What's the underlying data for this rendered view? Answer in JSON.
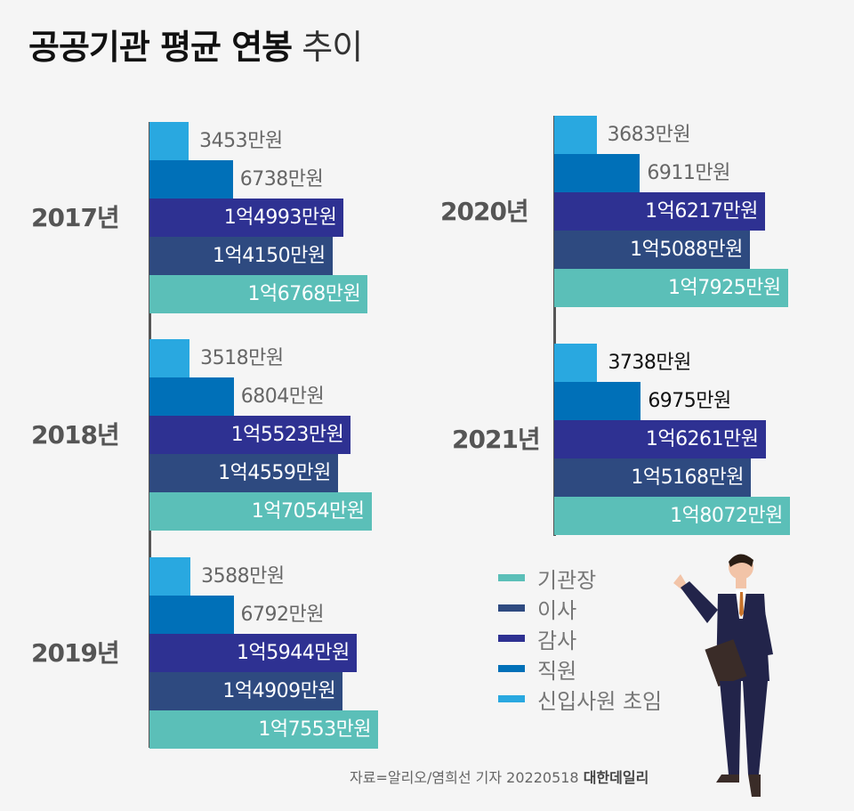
{
  "title": {
    "bold": "공공기관 평균 연봉",
    "light": "추이"
  },
  "colors": {
    "기관장": "#5bbfb8",
    "이사": "#2e4a80",
    "감사": "#2e3192",
    "직원": "#0070b8",
    "신입사원 초임": "#29a8e0"
  },
  "chart_data": {
    "type": "bar",
    "orientation": "horizontal",
    "unit": "만원",
    "series_order": [
      "신입사원 초임",
      "직원",
      "감사",
      "이사",
      "기관장"
    ],
    "groups": [
      {
        "year": "2017년",
        "values": [
          3453,
          6738,
          14993,
          14150,
          16768
        ],
        "labels": [
          "3453만원",
          "6738만원",
          "1억4993만원",
          "1억4150만원",
          "1억6768만원"
        ]
      },
      {
        "year": "2018년",
        "values": [
          3518,
          6804,
          15523,
          14559,
          17054
        ],
        "labels": [
          "3518만원",
          "6804만원",
          "1억5523만원",
          "1억4559만원",
          "1억7054만원"
        ]
      },
      {
        "year": "2019년",
        "values": [
          3588,
          6792,
          15944,
          14909,
          17553
        ],
        "labels": [
          "3588만원",
          "6792만원",
          "1억5944만원",
          "1억4909만원",
          "1억7553만원"
        ]
      },
      {
        "year": "2020년",
        "values": [
          3683,
          6911,
          16217,
          15088,
          17925
        ],
        "labels": [
          "3683만원",
          "6911만원",
          "1억6217만원",
          "1억5088만원",
          "1억7925만원"
        ]
      },
      {
        "year": "2021년",
        "values": [
          3738,
          6975,
          16261,
          15168,
          18072
        ],
        "labels": [
          "3738만원",
          "6975만원",
          "1억6261만원",
          "1억5168만원",
          "1억8072만원"
        ]
      }
    ],
    "legend": [
      "기관장",
      "이사",
      "감사",
      "직원",
      "신입사원 초임"
    ],
    "legend_placement": "bottom-right"
  },
  "source": {
    "text": "자료=알리오/염희선 기자 20220518",
    "brand": "대한데일리"
  }
}
